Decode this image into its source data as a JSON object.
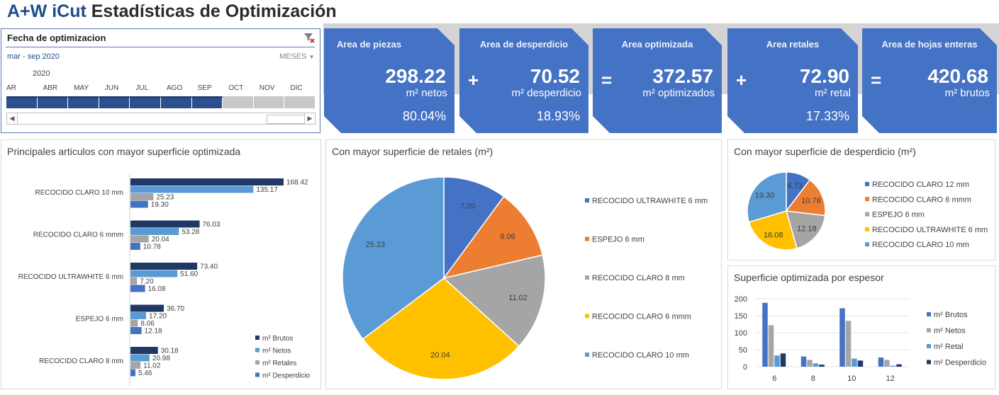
{
  "header": {
    "brand": "A+W iCut",
    "title": "Estadísticas de Optimización"
  },
  "slicer": {
    "title": "Fecha de optimizacion",
    "range": "mar - sep 2020",
    "level": "MESES",
    "year": "2020",
    "months": [
      "AR",
      "ABR",
      "MAY",
      "JUN",
      "JUL",
      "AGO",
      "SEP",
      "OCT",
      "NOV",
      "DIC"
    ],
    "selected_months": 7
  },
  "kpis": [
    {
      "label": "Area de piezas",
      "value": "298.22",
      "unit": "m² netos",
      "pct": "80.04%",
      "op": ""
    },
    {
      "label": "Area de desperdicio",
      "value": "70.52",
      "unit": "m² desperdicio",
      "pct": "18.93%",
      "op": "+"
    },
    {
      "label": "Area optimizada",
      "value": "372.57",
      "unit": "m² optimizados",
      "pct": "",
      "op": "="
    },
    {
      "label": "Area retales",
      "value": "72.90",
      "unit": "m² retal",
      "pct": "17.33%",
      "op": "+"
    },
    {
      "label": "Area de hojas enteras",
      "value": "420.68",
      "unit": "m² brutos",
      "pct": "",
      "op": "="
    }
  ],
  "colors": {
    "brutos": "#203864",
    "netos": "#5b9bd5",
    "retales": "#a5a5a5",
    "desperdicio": "#4472c4",
    "kpi": "#4472c4",
    "title_blue": "#1f4e8c"
  },
  "chart_data": [
    {
      "type": "bar",
      "orientation": "horizontal",
      "title": "Principales articulos con mayor superficie optimizada",
      "categories": [
        "RECOCIDO CLARO 10 mm",
        "RECOCIDO CLARO 6 mmm",
        "RECOCIDO ULTRAWHITE 6 mm",
        "ESPEJO 6 mm",
        "RECOCIDO CLARO 8 mm"
      ],
      "series": [
        {
          "name": "m² Brutos",
          "values": [
            168.42,
            76.03,
            73.4,
            36.7,
            30.18
          ]
        },
        {
          "name": "m² Netos",
          "values": [
            135.17,
            53.28,
            51.6,
            17.2,
            20.98
          ]
        },
        {
          "name": "m² Retales",
          "values": [
            25.23,
            20.04,
            7.2,
            8.06,
            11.02
          ]
        },
        {
          "name": "m² Desperdicio",
          "values": [
            19.3,
            10.78,
            16.08,
            12.18,
            5.46
          ]
        }
      ],
      "legend": "bottom-right",
      "xlim": [
        0,
        180
      ]
    },
    {
      "type": "pie",
      "title": "Con mayor superficie de retales (m²)",
      "labels": [
        "RECOCIDO ULTRAWHITE 6 mm",
        "ESPEJO 6 mm",
        "RECOCIDO CLARO 8 mm",
        "RECOCIDO CLARO 6 mmm",
        "RECOCIDO CLARO 10 mm"
      ],
      "values": [
        7.2,
        8.06,
        11.02,
        20.04,
        25.23
      ],
      "colors": [
        "#4472c4",
        "#ed7d31",
        "#a5a5a5",
        "#ffc000",
        "#5b9bd5"
      ],
      "legend": "right"
    },
    {
      "type": "pie",
      "title": "Con mayor superficie de desperdicio (m²)",
      "labels": [
        "RECOCIDO CLARO 12 mm",
        "RECOCIDO CLARO 6 mmm",
        "ESPEJO 6 mm",
        "RECOCIDO ULTRAWHITE 6 mm",
        "RECOCIDO CLARO 10 mm"
      ],
      "values": [
        6.73,
        10.78,
        12.18,
        16.08,
        19.3
      ],
      "colors": [
        "#4472c4",
        "#ed7d31",
        "#a5a5a5",
        "#ffc000",
        "#5b9bd5"
      ],
      "legend": "right"
    },
    {
      "type": "bar",
      "title": "Superficie optimizada por espesor",
      "categories": [
        "6",
        "8",
        "10",
        "12"
      ],
      "series": [
        {
          "name": "m² Brutos",
          "values": [
            188,
            30,
            172,
            27
          ]
        },
        {
          "name": "m² Netos",
          "values": [
            122,
            20,
            135,
            20
          ]
        },
        {
          "name": "m² Retal",
          "values": [
            33,
            10,
            24,
            3
          ]
        },
        {
          "name": "m² Desperdicio",
          "values": [
            39,
            6,
            18,
            7
          ]
        }
      ],
      "ylim": [
        0,
        200
      ],
      "yticks": [
        "0",
        "50",
        "100",
        "150",
        "200"
      ],
      "legend": "right"
    }
  ]
}
